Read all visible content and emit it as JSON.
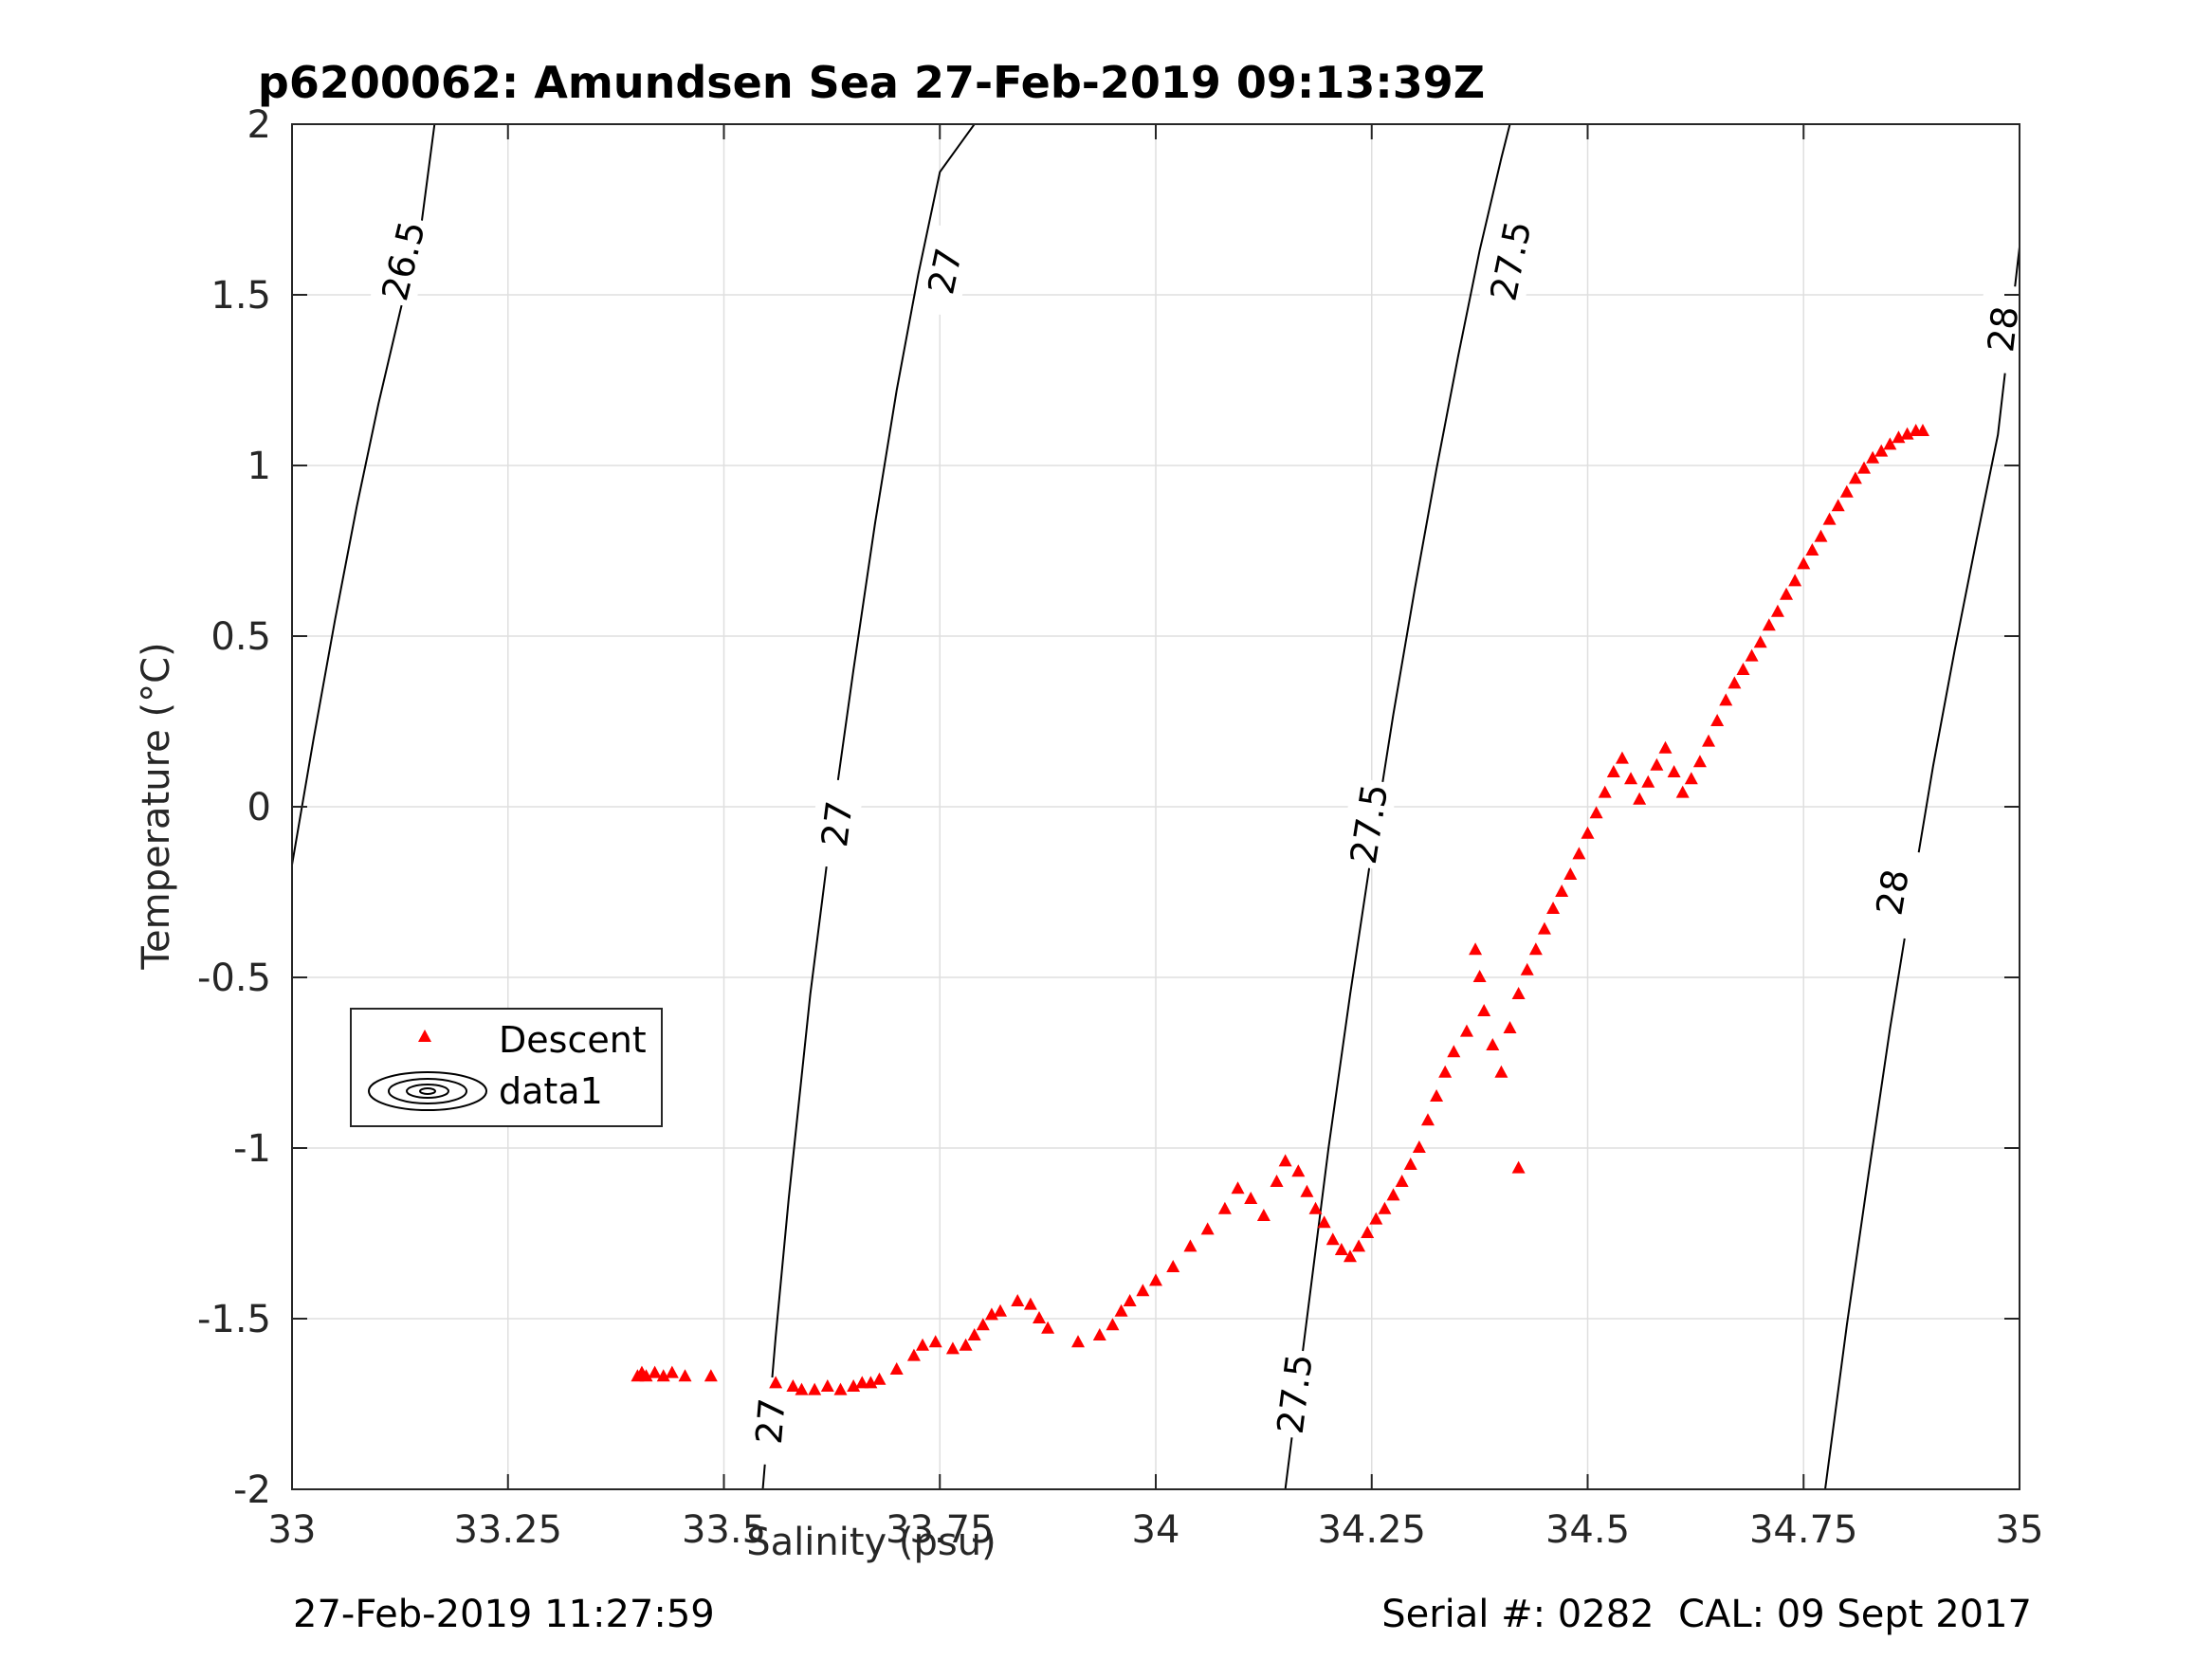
{
  "footer": {
    "timestamp": "27-Feb-2019 11:27:59",
    "serial": "Serial #: 0282  CAL: 09 Sept 2017"
  },
  "chart_data": {
    "type": "scatter",
    "title": "p6200062: Amundsen Sea 27-Feb-2019 09:13:39Z",
    "xlabel": "Salinity (psu)",
    "ylabel": "Temperature (°C)",
    "xlim": [
      33,
      35
    ],
    "ylim": [
      -2,
      2
    ],
    "xticks": [
      33,
      33.25,
      33.5,
      33.75,
      34,
      34.25,
      34.5,
      34.75,
      35
    ],
    "xtick_labels": [
      "33",
      "33.25",
      "33.5",
      "33.75",
      "34",
      "34.25",
      "34.5",
      "34.75",
      "35"
    ],
    "yticks": [
      -2,
      -1.5,
      -1,
      -0.5,
      0,
      0.5,
      1,
      1.5,
      2
    ],
    "ytick_labels": [
      "-2",
      "-1.5",
      "-1",
      "-0.5",
      "0",
      "0.5",
      "1",
      "1.5",
      "2"
    ],
    "grid": true,
    "legend": {
      "position": "middle-left",
      "entries": [
        "Descent",
        "data1"
      ]
    },
    "colors": {
      "descent": "#ff0000",
      "contour": "#000000",
      "grid": "#dfdfdf"
    },
    "contours": [
      {
        "level": "26.5",
        "points": [
          [
            33.0,
            -0.17
          ],
          [
            33.025,
            0.2
          ],
          [
            33.05,
            0.55
          ],
          [
            33.075,
            0.88
          ],
          [
            33.1,
            1.18
          ],
          [
            33.125,
            1.45
          ],
          [
            33.15,
            1.71
          ],
          [
            33.165,
            2.0
          ]
        ],
        "labels": [
          {
            "x": 33.128,
            "y": 1.6
          }
        ]
      },
      {
        "level": "27",
        "points": [
          [
            33.545,
            -2.0
          ],
          [
            33.56,
            -1.55
          ],
          [
            33.575,
            -1.15
          ],
          [
            33.6,
            -0.55
          ],
          [
            33.625,
            -0.05
          ],
          [
            33.65,
            0.4
          ],
          [
            33.675,
            0.83
          ],
          [
            33.7,
            1.22
          ],
          [
            33.725,
            1.56
          ],
          [
            33.75,
            1.86
          ],
          [
            33.79,
            2.0
          ]
        ],
        "labels": [
          {
            "x": 33.553,
            "y": -1.8
          },
          {
            "x": 33.63,
            "y": -0.05
          },
          {
            "x": 33.755,
            "y": 1.57
          }
        ]
      },
      {
        "level": "27.5",
        "points": [
          [
            34.15,
            -2.0
          ],
          [
            34.175,
            -1.5
          ],
          [
            34.2,
            -1.0
          ],
          [
            34.225,
            -0.55
          ],
          [
            34.25,
            -0.13
          ],
          [
            34.275,
            0.27
          ],
          [
            34.3,
            0.64
          ],
          [
            34.325,
            0.99
          ],
          [
            34.35,
            1.32
          ],
          [
            34.375,
            1.63
          ],
          [
            34.4,
            1.9
          ],
          [
            34.41,
            2.0
          ]
        ],
        "labels": [
          {
            "x": 34.16,
            "y": -1.72
          },
          {
            "x": 34.246,
            "y": -0.05
          },
          {
            "x": 34.41,
            "y": 1.6
          }
        ]
      },
      {
        "level": "28",
        "points": [
          [
            34.775,
            -2.0
          ],
          [
            34.8,
            -1.52
          ],
          [
            34.825,
            -1.08
          ],
          [
            34.85,
            -0.65
          ],
          [
            34.875,
            -0.26
          ],
          [
            34.9,
            0.12
          ],
          [
            34.925,
            0.46
          ],
          [
            34.95,
            0.78
          ],
          [
            34.975,
            1.09
          ],
          [
            35.0,
            1.64
          ]
        ],
        "labels": [
          {
            "x": 34.852,
            "y": -0.25
          },
          {
            "x": 34.98,
            "y": 1.4
          }
        ]
      }
    ],
    "series": [
      {
        "name": "Descent",
        "marker": "triangle",
        "color": "#ff0000",
        "points": [
          [
            33.4,
            -1.67
          ],
          [
            33.405,
            -1.66
          ],
          [
            33.41,
            -1.67
          ],
          [
            33.42,
            -1.66
          ],
          [
            33.43,
            -1.67
          ],
          [
            33.44,
            -1.66
          ],
          [
            33.455,
            -1.67
          ],
          [
            33.485,
            -1.67
          ],
          [
            33.56,
            -1.69
          ],
          [
            33.58,
            -1.7
          ],
          [
            33.59,
            -1.71
          ],
          [
            33.605,
            -1.71
          ],
          [
            33.62,
            -1.7
          ],
          [
            33.635,
            -1.71
          ],
          [
            33.65,
            -1.7
          ],
          [
            33.66,
            -1.69
          ],
          [
            33.67,
            -1.69
          ],
          [
            33.68,
            -1.68
          ],
          [
            33.7,
            -1.65
          ],
          [
            33.72,
            -1.61
          ],
          [
            33.73,
            -1.58
          ],
          [
            33.745,
            -1.57
          ],
          [
            33.765,
            -1.59
          ],
          [
            33.78,
            -1.58
          ],
          [
            33.79,
            -1.55
          ],
          [
            33.8,
            -1.52
          ],
          [
            33.81,
            -1.49
          ],
          [
            33.82,
            -1.48
          ],
          [
            33.84,
            -1.45
          ],
          [
            33.855,
            -1.46
          ],
          [
            33.865,
            -1.5
          ],
          [
            33.875,
            -1.53
          ],
          [
            33.91,
            -1.57
          ],
          [
            33.935,
            -1.55
          ],
          [
            33.95,
            -1.52
          ],
          [
            33.96,
            -1.48
          ],
          [
            33.97,
            -1.45
          ],
          [
            33.985,
            -1.42
          ],
          [
            34.0,
            -1.39
          ],
          [
            34.02,
            -1.35
          ],
          [
            34.04,
            -1.29
          ],
          [
            34.06,
            -1.24
          ],
          [
            34.08,
            -1.18
          ],
          [
            34.095,
            -1.12
          ],
          [
            34.11,
            -1.15
          ],
          [
            34.125,
            -1.2
          ],
          [
            34.14,
            -1.1
          ],
          [
            34.15,
            -1.04
          ],
          [
            34.165,
            -1.07
          ],
          [
            34.175,
            -1.13
          ],
          [
            34.185,
            -1.18
          ],
          [
            34.195,
            -1.22
          ],
          [
            34.205,
            -1.27
          ],
          [
            34.215,
            -1.3
          ],
          [
            34.225,
            -1.32
          ],
          [
            34.235,
            -1.29
          ],
          [
            34.245,
            -1.25
          ],
          [
            34.255,
            -1.21
          ],
          [
            34.265,
            -1.18
          ],
          [
            34.275,
            -1.14
          ],
          [
            34.285,
            -1.1
          ],
          [
            34.295,
            -1.05
          ],
          [
            34.305,
            -1.0
          ],
          [
            34.315,
            -0.92
          ],
          [
            34.325,
            -0.85
          ],
          [
            34.335,
            -0.78
          ],
          [
            34.345,
            -0.72
          ],
          [
            34.36,
            -0.66
          ],
          [
            34.37,
            -0.42
          ],
          [
            34.375,
            -0.5
          ],
          [
            34.38,
            -0.6
          ],
          [
            34.39,
            -0.7
          ],
          [
            34.4,
            -0.78
          ],
          [
            34.41,
            -0.65
          ],
          [
            34.42,
            -0.55
          ],
          [
            34.43,
            -0.48
          ],
          [
            34.44,
            -0.42
          ],
          [
            34.45,
            -0.36
          ],
          [
            34.46,
            -0.3
          ],
          [
            34.47,
            -0.25
          ],
          [
            34.48,
            -0.2
          ],
          [
            34.49,
            -0.14
          ],
          [
            34.5,
            -0.08
          ],
          [
            34.51,
            -0.02
          ],
          [
            34.52,
            0.04
          ],
          [
            34.53,
            0.1
          ],
          [
            34.54,
            0.14
          ],
          [
            34.55,
            0.08
          ],
          [
            34.56,
            0.02
          ],
          [
            34.57,
            0.07
          ],
          [
            34.58,
            0.12
          ],
          [
            34.59,
            0.17
          ],
          [
            34.6,
            0.1
          ],
          [
            34.61,
            0.04
          ],
          [
            34.62,
            0.08
          ],
          [
            34.63,
            0.13
          ],
          [
            34.64,
            0.19
          ],
          [
            34.65,
            0.25
          ],
          [
            34.66,
            0.31
          ],
          [
            34.67,
            0.36
          ],
          [
            34.68,
            0.4
          ],
          [
            34.69,
            0.44
          ],
          [
            34.7,
            0.48
          ],
          [
            34.71,
            0.53
          ],
          [
            34.72,
            0.57
          ],
          [
            34.73,
            0.62
          ],
          [
            34.74,
            0.66
          ],
          [
            34.75,
            0.71
          ],
          [
            34.76,
            0.75
          ],
          [
            34.77,
            0.79
          ],
          [
            34.78,
            0.84
          ],
          [
            34.79,
            0.88
          ],
          [
            34.8,
            0.92
          ],
          [
            34.81,
            0.96
          ],
          [
            34.82,
            0.99
          ],
          [
            34.83,
            1.02
          ],
          [
            34.84,
            1.04
          ],
          [
            34.85,
            1.06
          ],
          [
            34.86,
            1.08
          ],
          [
            34.87,
            1.09
          ],
          [
            34.88,
            1.1
          ],
          [
            34.888,
            1.1
          ],
          [
            34.42,
            -1.06
          ]
        ]
      }
    ]
  }
}
